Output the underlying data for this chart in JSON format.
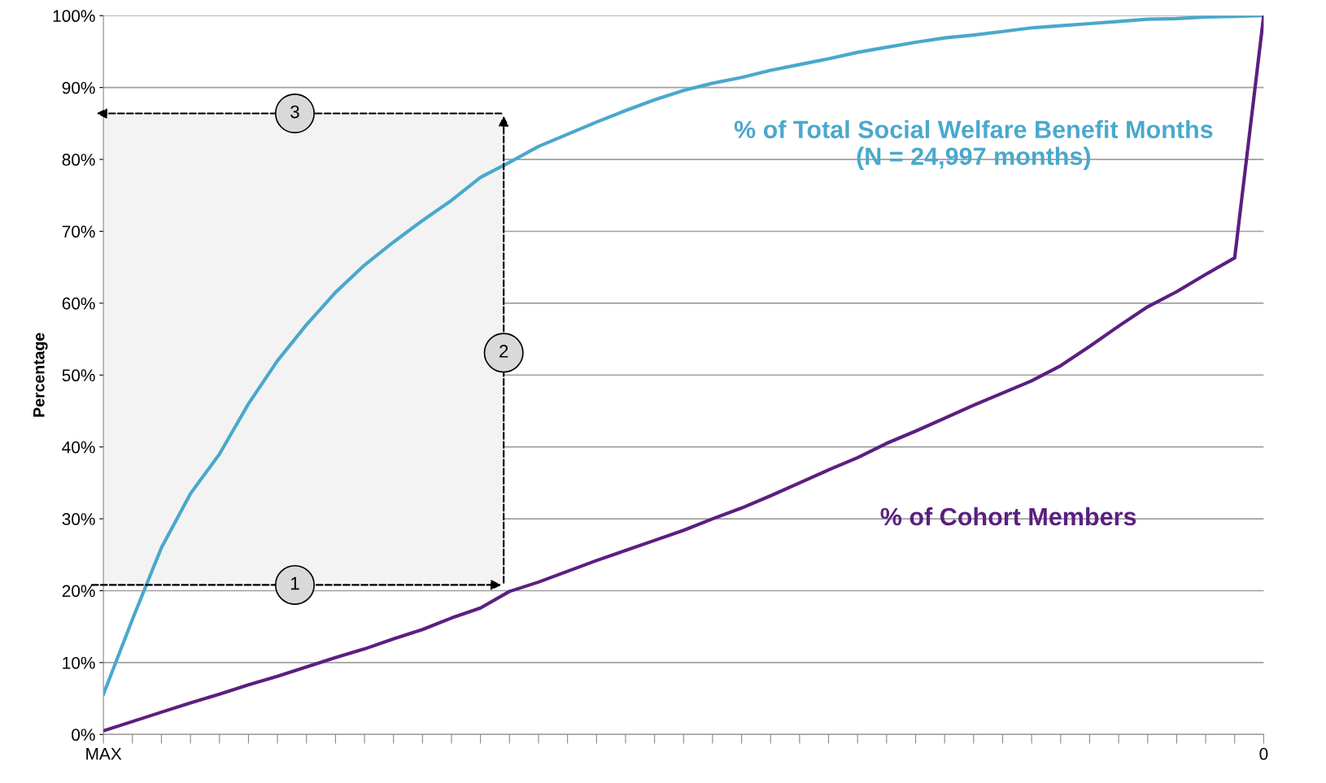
{
  "chart_data": {
    "type": "line",
    "ylabel": "Percentage",
    "categories": [
      "MAX",
      null,
      null,
      null,
      null,
      null,
      null,
      null,
      null,
      null,
      null,
      null,
      null,
      null,
      null,
      null,
      null,
      null,
      null,
      null,
      null,
      null,
      null,
      null,
      null,
      null,
      null,
      null,
      null,
      null,
      null,
      null,
      null,
      null,
      null,
      null,
      null,
      null,
      null,
      null,
      "0"
    ],
    "ylim": [
      0,
      100
    ],
    "yticks": [
      {
        "value": 0,
        "label": "0%"
      },
      {
        "value": 10,
        "label": "10%"
      },
      {
        "value": 20,
        "label": "20%"
      },
      {
        "value": 30,
        "label": "30%"
      },
      {
        "value": 40,
        "label": "40%"
      },
      {
        "value": 50,
        "label": "50%"
      },
      {
        "value": 60,
        "label": "60%"
      },
      {
        "value": 70,
        "label": "70%"
      },
      {
        "value": 80,
        "label": "80%"
      },
      {
        "value": 90,
        "label": "90%"
      },
      {
        "value": 100,
        "label": "100%"
      }
    ],
    "grid": "y",
    "legend": false,
    "marker": "none",
    "line_style": "solid",
    "series": [
      {
        "name": "% of Total Social Welfare Benefit Months\n(N = 24,997 months)",
        "color": "#4aa8cc",
        "values": [
          5.6,
          16,
          26,
          33.5,
          39,
          46,
          52,
          57,
          61.5,
          65.3,
          68.5,
          71.5,
          74.3,
          77.5,
          79.6,
          81.8,
          83.5,
          85.2,
          86.8,
          88.3,
          89.6,
          90.6,
          91.4,
          92.4,
          93.2,
          94,
          94.9,
          95.6,
          96.3,
          96.9,
          97.3,
          97.8,
          98.3,
          98.6,
          98.9,
          99.2,
          99.5,
          99.6,
          99.8,
          99.9,
          100
        ]
      },
      {
        "name": "% of Cohort Members",
        "color": "#5b1f80",
        "values": [
          0.5,
          1.8,
          3.1,
          4.4,
          5.6,
          6.9,
          8.1,
          9.4,
          10.7,
          11.9,
          13.3,
          14.6,
          16.2,
          17.6,
          19.9,
          21.2,
          22.7,
          24.2,
          25.6,
          27,
          28.4,
          30,
          31.5,
          33.2,
          35,
          36.8,
          38.5,
          40.5,
          42.2,
          44,
          45.8,
          47.5,
          49.2,
          51.3,
          54,
          56.8,
          59.5,
          61.6,
          64,
          66.3,
          100
        ]
      }
    ],
    "annotations": [
      "1",
      "2",
      "3"
    ]
  }
}
